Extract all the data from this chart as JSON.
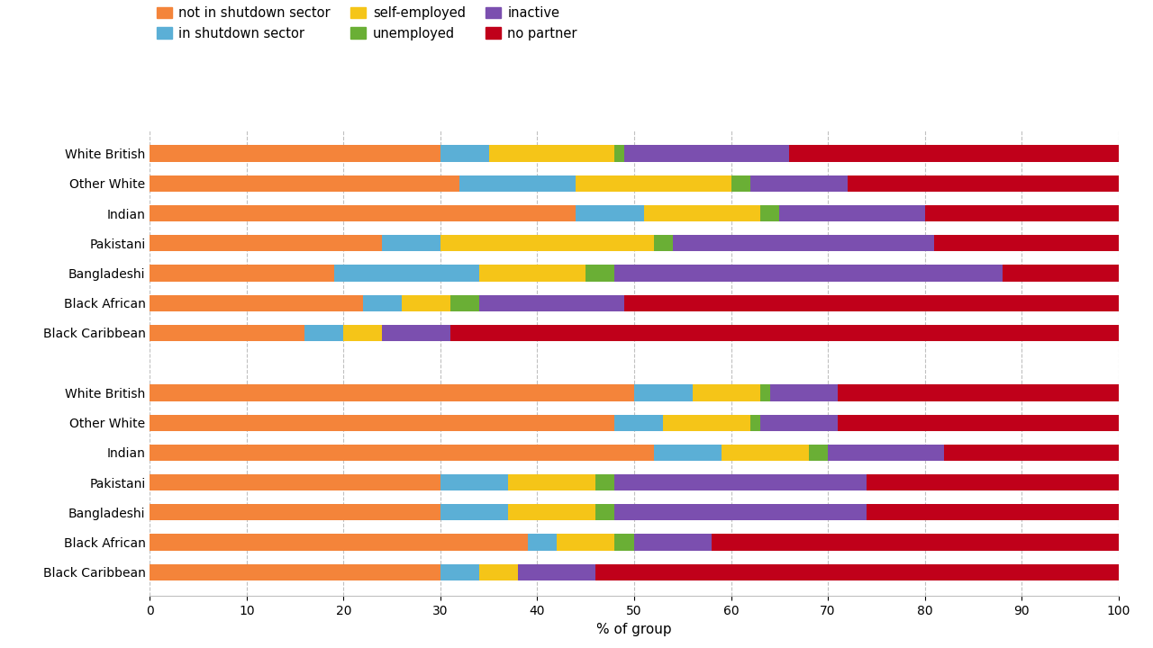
{
  "categories": [
    "White British",
    "Other White",
    "Indian",
    "Pakistani",
    "Bangladeshi",
    "Black African",
    "Black Caribbean"
  ],
  "segments": [
    "not in shutdown sector",
    "in shutdown sector",
    "self-employed",
    "unemployed",
    "inactive",
    "no partner"
  ],
  "colors": [
    "#F4843A",
    "#5BAFD6",
    "#F5C518",
    "#6AAF35",
    "#7B4FAF",
    "#C0001A"
  ],
  "data_top": [
    [
      50,
      6,
      7,
      1,
      7,
      29
    ],
    [
      48,
      5,
      9,
      1,
      8,
      29
    ],
    [
      52,
      7,
      9,
      2,
      12,
      18
    ],
    [
      30,
      7,
      9,
      2,
      26,
      26
    ],
    [
      30,
      7,
      9,
      2,
      26,
      26
    ],
    [
      39,
      3,
      6,
      2,
      8,
      42
    ],
    [
      30,
      4,
      4,
      0,
      8,
      54
    ]
  ],
  "data_bottom": [
    [
      30,
      5,
      13,
      1,
      17,
      34
    ],
    [
      32,
      12,
      16,
      2,
      10,
      28
    ],
    [
      44,
      7,
      12,
      2,
      15,
      20
    ],
    [
      24,
      6,
      22,
      2,
      27,
      19
    ],
    [
      19,
      15,
      11,
      3,
      40,
      12
    ],
    [
      22,
      4,
      5,
      3,
      15,
      51
    ],
    [
      16,
      4,
      4,
      0,
      7,
      69
    ]
  ],
  "xlabel": "% of group",
  "xlim": [
    0,
    100
  ],
  "xticks": [
    0,
    10,
    20,
    30,
    40,
    50,
    60,
    70,
    80,
    90,
    100
  ],
  "background_color": "#FFFFFF",
  "legend_labels": [
    "not in shutdown sector",
    "in shutdown sector",
    "self-employed",
    "unemployed",
    "inactive",
    "no partner"
  ]
}
